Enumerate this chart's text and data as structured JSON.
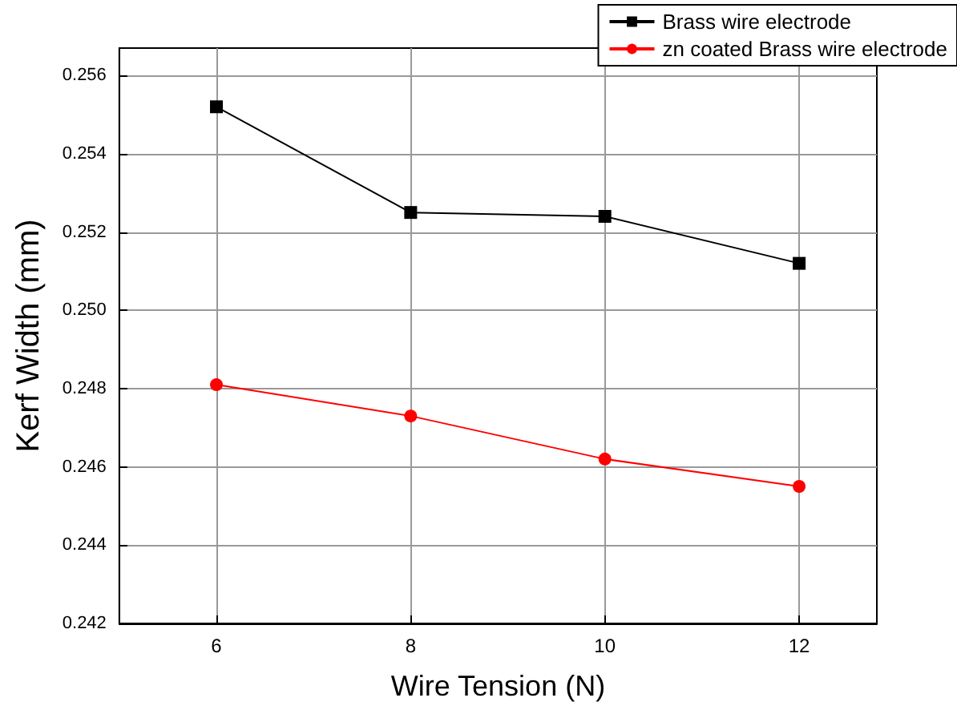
{
  "chart_data": {
    "type": "line",
    "xlabel": "Wire Tension (N)",
    "ylabel": "Kerf Width (mm)",
    "x": [
      6,
      8,
      10,
      12
    ],
    "series": [
      {
        "name": "Brass wire electrode",
        "color": "#000000",
        "marker": "square",
        "values": [
          0.2552,
          0.2525,
          0.2524,
          0.2512
        ]
      },
      {
        "name": "zn coated Brass wire electrode",
        "color": "#ff0000",
        "marker": "circle",
        "values": [
          0.2481,
          0.2473,
          0.2462,
          0.2455
        ]
      }
    ],
    "xlim": [
      5,
      12.8
    ],
    "xticks": [
      6,
      8,
      10,
      12
    ],
    "ylim": [
      0.242,
      0.2567
    ],
    "yticks": [
      0.242,
      0.244,
      0.246,
      0.248,
      {
        "value": 0.25,
        "label": "0.250"
      },
      0.252,
      0.254,
      0.256
    ],
    "grid": true,
    "legend": "top right",
    "line_style": "solid"
  }
}
